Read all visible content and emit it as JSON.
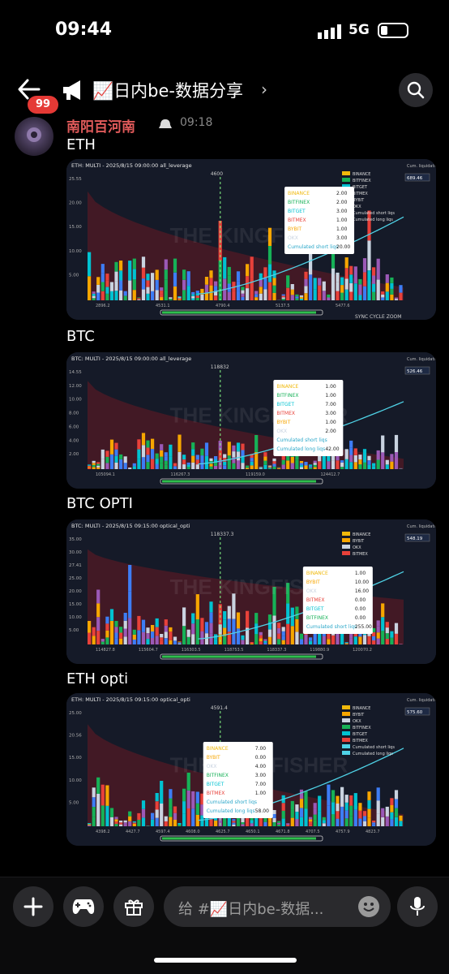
{
  "status_bar": {
    "time": "09:44",
    "network": "5G"
  },
  "header": {
    "unread_count": "99",
    "channel_title": "📈日内be-数据分享",
    "chevron": "›"
  },
  "message": {
    "author": "南阳百河南",
    "time": "09:18",
    "charts": [
      {
        "label": "ETH",
        "title": "ETH: MULTI - 2025/8/15 09:00:00 all_leverage",
        "legend_right": [
          "BINANCE",
          "BITFINEX",
          "BITGET",
          "BITMEX",
          "BYBIT",
          "OKX",
          "Cumulated short liqs",
          "Cumulated long liqs"
        ],
        "right_label": "Cum. liquidations",
        "tooltip": [
          [
            "BINANCE",
            "2.00"
          ],
          [
            "BITFINEX",
            "2.00"
          ],
          [
            "BITGET",
            "3.00"
          ],
          [
            "BITMEX",
            "1.00"
          ],
          [
            "BYBIT",
            "1.00"
          ],
          [
            "OKX",
            "3.00"
          ],
          [
            "Cumulated short liqs",
            "20.00"
          ]
        ],
        "y_ticks": [
          "25.55",
          "20.00",
          "15.00",
          "10.00",
          "5.00"
        ],
        "x_ticks": [
          "2896.2",
          "4531.1",
          "4790.4",
          "5137.5",
          "5477.6"
        ],
        "peak_label": "4600",
        "right_value": "689.46",
        "footer": "SYNC   CYCLE ZOOM"
      },
      {
        "label": "BTC",
        "title": "BTC: MULTI - 2025/8/15 09:00:00 all_leverage",
        "right_label": "Cum. liquidations",
        "tooltip": [
          [
            "BINANCE",
            "1.00"
          ],
          [
            "BITFINEX",
            "1.00"
          ],
          [
            "BITGET",
            "7.00"
          ],
          [
            "BITMEX",
            "3.00"
          ],
          [
            "BYBIT",
            "1.00"
          ],
          [
            "OKX",
            "2.00"
          ],
          [
            "Cumulated short liqs",
            ""
          ],
          [
            "Cumulated long liqs",
            "42.00"
          ]
        ],
        "y_ticks": [
          "14.55",
          "12.00",
          "10.00",
          "8.00",
          "6.00",
          "4.00",
          "2.00"
        ],
        "x_ticks": [
          "105094.1",
          "116267.3",
          "119159.0",
          "124412.7"
        ],
        "peak_label": "118832",
        "right_value": "526.46"
      },
      {
        "label": "BTC OPTI",
        "title": "BTC: MULTI - 2025/8/15 09:15:00 optical_opti",
        "legend_right": [
          "BINANCE",
          "BYBIT",
          "OKX",
          "BITMEX"
        ],
        "right_label": "Cum. liquidations",
        "tooltip": [
          [
            "BINANCE",
            "1.00"
          ],
          [
            "BYBIT",
            "10.00"
          ],
          [
            "OKX",
            "16.00"
          ],
          [
            "BITMEX",
            "0.00"
          ],
          [
            "BITGET",
            "0.00"
          ],
          [
            "BITFINEX",
            "0.00"
          ],
          [
            "Cumulated short liqs",
            "255.00"
          ]
        ],
        "y_ticks": [
          "35.00",
          "30.00",
          "27.41",
          "25.00",
          "20.00",
          "15.00",
          "10.00",
          "5.00"
        ],
        "x_ticks": [
          "114827.8",
          "115604.7",
          "116303.5",
          "118753.5",
          "118337.3",
          "119880.9",
          "120070.2"
        ],
        "peak_label": "118337.3",
        "right_value": "548.19"
      },
      {
        "label": "ETH opti",
        "title": "ETH: MULTI - 2025/8/15 09:15:00 optical_opti",
        "legend_right": [
          "BINANCE",
          "BYBIT",
          "OKX",
          "BITFINEX",
          "BITGET",
          "BITMEX",
          "Cumulated short liqs",
          "Cumulated long liqs"
        ],
        "right_label": "Cum. liquidations",
        "tooltip": [
          [
            "BINANCE",
            "7.00"
          ],
          [
            "BYBIT",
            "0.00"
          ],
          [
            "OKX",
            "4.00"
          ],
          [
            "BITFINEX",
            "3.00"
          ],
          [
            "BITGET",
            "7.00"
          ],
          [
            "BITMEX",
            "1.00"
          ],
          [
            "Cumulated short liqs",
            ""
          ],
          [
            "Cumulated long liqs",
            "58.00"
          ]
        ],
        "y_ticks": [
          "25.00",
          "20.56",
          "15.00",
          "10.00",
          "5.00"
        ],
        "x_ticks": [
          "4398.2",
          "4427.7",
          "4597.4",
          "4608.0",
          "4625.7",
          "4650.1",
          "4671.8",
          "4707.5",
          "4757.9",
          "4823.7"
        ],
        "peak_label": "4591.4",
        "right_value": "575.60"
      }
    ]
  },
  "composer": {
    "placeholder": "给 #📈日内be-数据..."
  },
  "colors": {
    "accent_red": "#e53935",
    "background": "#000000",
    "chart_bg": "#161a26"
  }
}
